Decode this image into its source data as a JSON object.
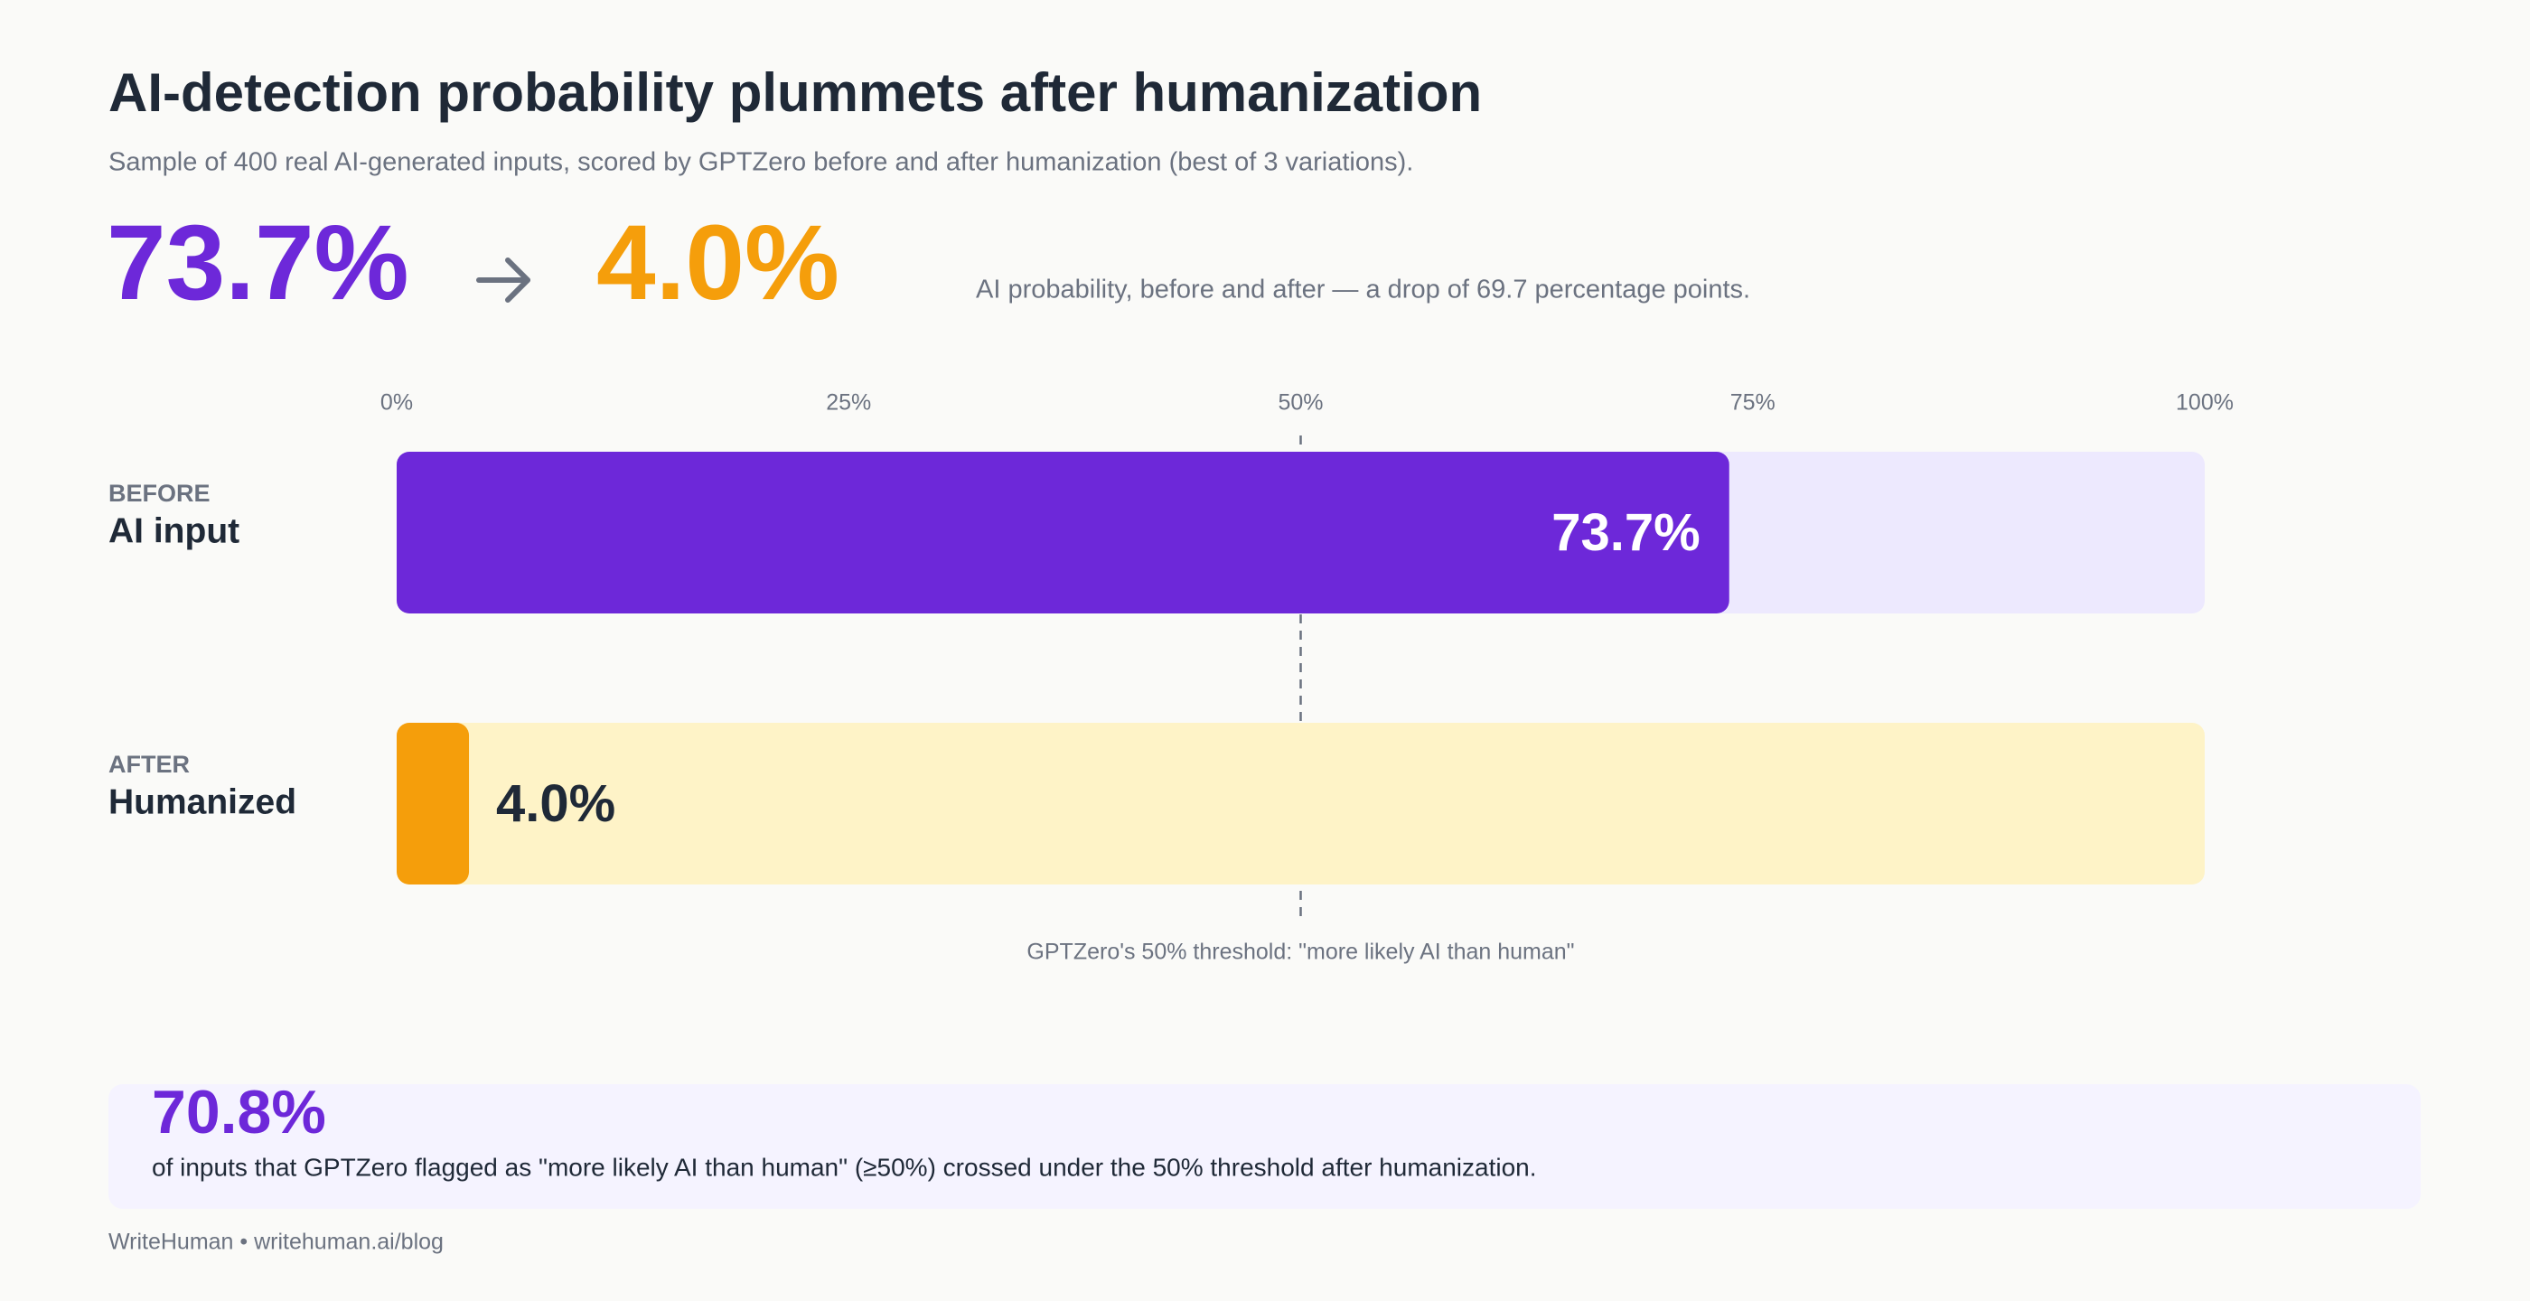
{
  "header": {
    "title": "AI-detection probability plummets after humanization",
    "subtitle": "Sample of 400 real AI-generated inputs, scored by GPTZero before and after humanization (best of 3 variations)."
  },
  "headline": {
    "before": "73.7%",
    "after": "4.0%",
    "note": "AI probability, before and after — a drop of 69.7 percentage points."
  },
  "chart_data": {
    "type": "bar",
    "orientation": "horizontal",
    "category_tags": [
      "BEFORE",
      "AFTER"
    ],
    "categories": [
      "AI input",
      "Humanized"
    ],
    "values": [
      73.7,
      4.0
    ],
    "value_labels": [
      "73.7%",
      "4.0%"
    ],
    "colors": [
      "#6D28D9",
      "#F59E0B"
    ],
    "track_colors": [
      "#EDE9FE",
      "#FEF3C7"
    ],
    "xlim": [
      0,
      100
    ],
    "xticks": [
      {
        "value": 0,
        "label": "0%"
      },
      {
        "value": 25,
        "label": "25%"
      },
      {
        "value": 50,
        "label": "50%"
      },
      {
        "value": 75,
        "label": "75%"
      },
      {
        "value": 100,
        "label": "100%"
      }
    ],
    "threshold": {
      "value": 50,
      "label": "GPTZero's 50% threshold: \"more likely AI than human\""
    }
  },
  "callout": {
    "stat": "70.8%",
    "text": "of inputs that GPTZero flagged as \"more likely AI than human\" (≥50%) crossed under the 50% threshold after humanization."
  },
  "footer": "WriteHuman • writehuman.ai/blog"
}
